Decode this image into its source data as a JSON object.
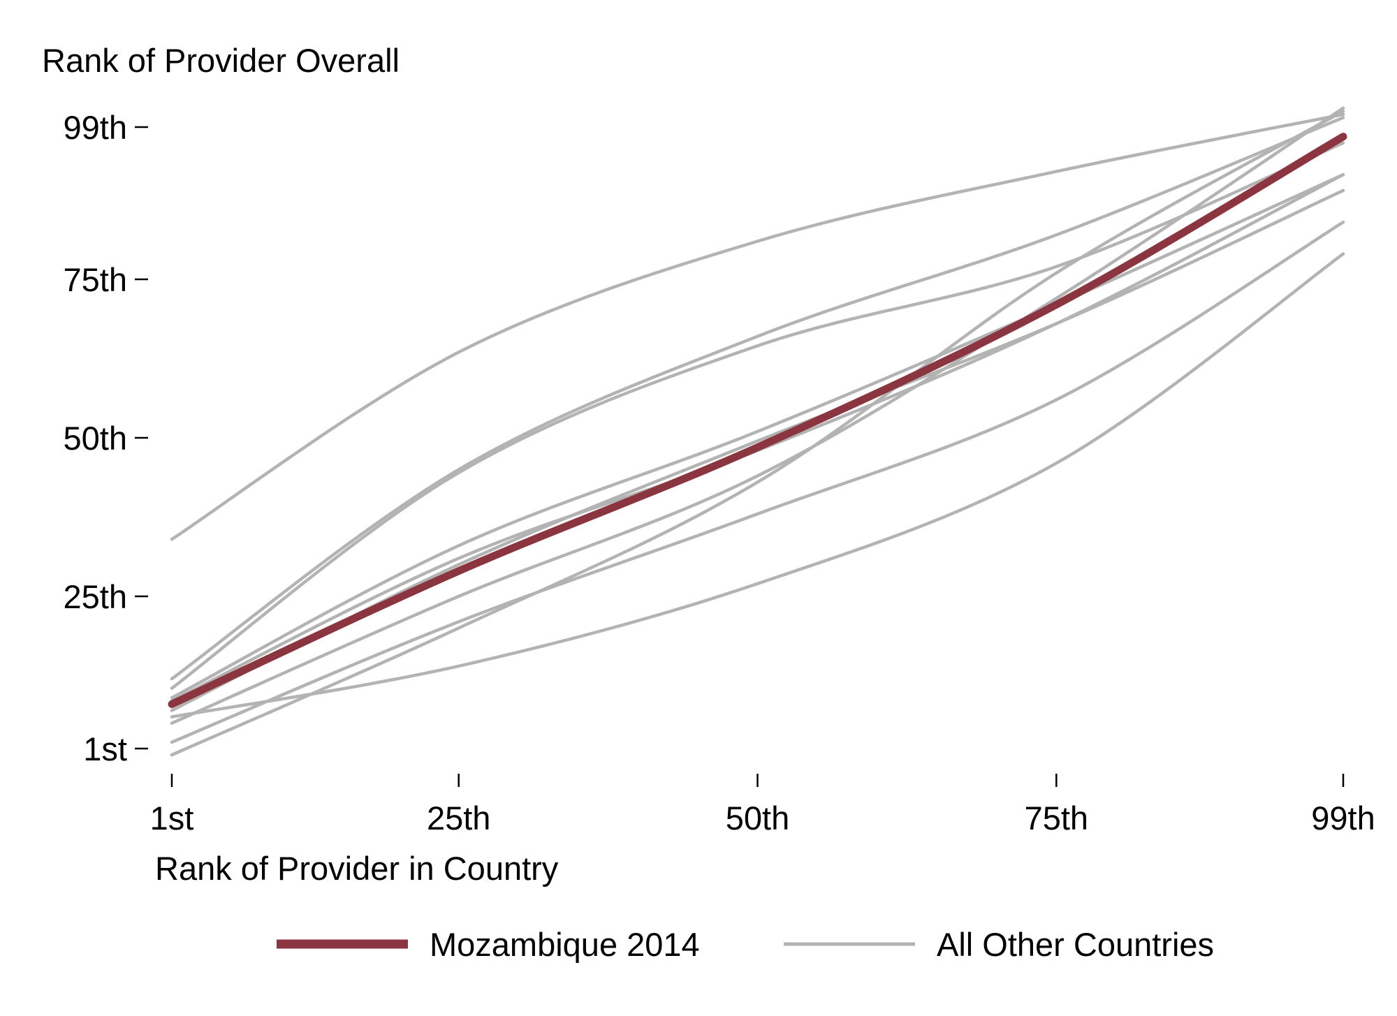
{
  "chart_data": {
    "type": "line",
    "ylabel": "Rank of Provider Overall",
    "xlabel": "Rank of Provider in Country",
    "xlim": [
      1,
      99
    ],
    "ylim": [
      1,
      99
    ],
    "x_ticks": [
      {
        "value": 1,
        "label": "1st"
      },
      {
        "value": 25,
        "label": "25th"
      },
      {
        "value": 50,
        "label": "50th"
      },
      {
        "value": 75,
        "label": "75th"
      },
      {
        "value": 99,
        "label": "99th"
      }
    ],
    "y_ticks": [
      {
        "value": 1,
        "label": "1st"
      },
      {
        "value": 25,
        "label": "25th"
      },
      {
        "value": 50,
        "label": "50th"
      },
      {
        "value": 75,
        "label": "75th"
      },
      {
        "value": 99,
        "label": "99th"
      }
    ],
    "grid": false,
    "legend": {
      "position": "bottom",
      "entries": [
        {
          "label": "Mozambique 2014",
          "color": "#8B3541"
        },
        {
          "label": "All Other Countries",
          "color": "#B3B3B3"
        }
      ]
    },
    "x": [
      1,
      25,
      50,
      75,
      99
    ],
    "series": [
      {
        "group": "All Other Countries",
        "color": "#B3B3B3",
        "values": [
          34,
          63.5,
          81,
          92,
          101
        ]
      },
      {
        "group": "All Other Countries",
        "color": "#B3B3B3",
        "values": [
          12,
          45,
          66,
          82,
          100.5
        ]
      },
      {
        "group": "All Other Countries",
        "color": "#B3B3B3",
        "values": [
          10.5,
          44.5,
          64.5,
          77,
          96.5
        ]
      },
      {
        "group": "All Other Countries",
        "color": "#B3B3B3",
        "values": [
          9,
          33,
          51,
          71,
          91.5
        ]
      },
      {
        "group": "All Other Countries",
        "color": "#B3B3B3",
        "values": [
          8.5,
          31,
          48,
          68,
          91.5
        ]
      },
      {
        "group": "All Other Countries",
        "color": "#B3B3B3",
        "values": [
          7,
          30,
          49.5,
          68,
          89
        ]
      },
      {
        "group": "All Other Countries",
        "color": "#B3B3B3",
        "values": [
          5,
          25,
          44,
          72,
          102
        ]
      },
      {
        "group": "All Other Countries",
        "color": "#B3B3B3",
        "values": [
          2,
          21,
          38,
          56,
          84
        ]
      },
      {
        "group": "All Other Countries",
        "color": "#B3B3B3",
        "values": [
          6,
          14,
          27,
          46,
          79
        ]
      },
      {
        "group": "All Other Countries",
        "color": "#B3B3B3",
        "values": [
          0,
          20,
          43,
          76,
          101.5
        ]
      },
      {
        "name": "Mozambique 2014",
        "group": "Mozambique 2014",
        "color": "#8B3541",
        "values": [
          8,
          29,
          48.5,
          71,
          97.5
        ]
      }
    ]
  }
}
